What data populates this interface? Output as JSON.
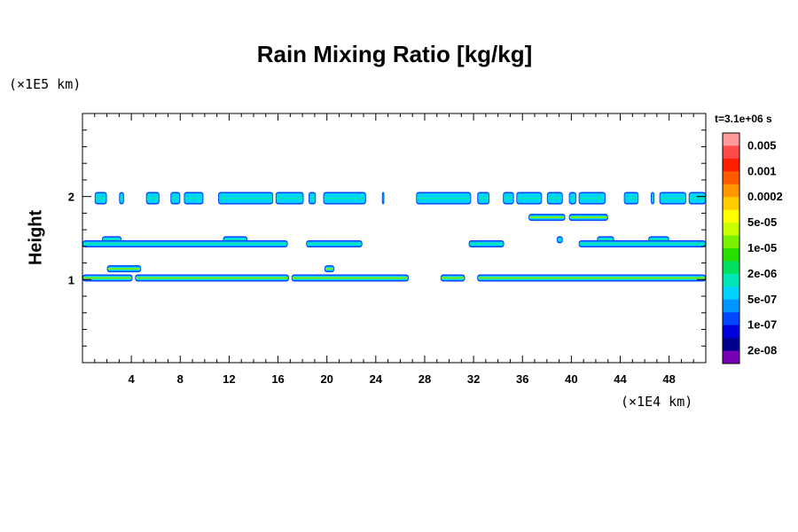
{
  "chart_data": {
    "type": "heatmap",
    "title": "Rain Mixing Ratio [kg/kg]",
    "ylabel": "Height",
    "y_unit": "(×1E5 km)",
    "x_unit": "(×1E4 km)",
    "time_label": "t=3.1e+06 s",
    "xlim": [
      0,
      51
    ],
    "ylim": [
      0,
      3
    ],
    "x_ticks": [
      4,
      8,
      12,
      16,
      20,
      24,
      28,
      32,
      36,
      40,
      44,
      48
    ],
    "y_ticks": [
      1,
      2
    ],
    "colorbar": {
      "labels": [
        "0.005",
        "0.001",
        "0.0002",
        "5e-05",
        "1e-05",
        "2e-06",
        "5e-07",
        "1e-07",
        "2e-08"
      ],
      "colors": [
        "#ff9a9a",
        "#ff4a4a",
        "#ff1e00",
        "#ff5a00",
        "#ff9600",
        "#ffcc00",
        "#ffff00",
        "#c8ff00",
        "#78f000",
        "#28e000",
        "#00e060",
        "#00e6b4",
        "#00d2ff",
        "#0096ff",
        "#0046ff",
        "#0000dc",
        "#00008c",
        "#7800b4"
      ]
    },
    "bands": [
      {
        "y": 1.98,
        "x": [
          [
            1.0,
            2.0
          ],
          [
            3.0,
            3.4
          ],
          [
            5.2,
            6.3
          ],
          [
            7.2,
            8.0
          ],
          [
            8.3,
            9.9
          ],
          [
            11.1,
            15.6
          ],
          [
            15.8,
            18.1
          ],
          [
            18.5,
            19.1
          ],
          [
            19.7,
            23.2
          ],
          [
            24.5,
            24.7
          ],
          [
            27.3,
            31.8
          ],
          [
            32.3,
            33.3
          ],
          [
            34.4,
            35.3
          ],
          [
            35.5,
            37.6
          ],
          [
            38.0,
            39.3
          ],
          [
            39.8,
            40.4
          ],
          [
            40.6,
            42.8
          ],
          [
            44.3,
            45.5
          ],
          [
            46.5,
            46.8
          ],
          [
            47.2,
            49.4
          ],
          [
            49.6,
            51.0
          ]
        ]
      },
      {
        "y": 1.75,
        "x": [
          [
            36.5,
            39.5
          ],
          [
            39.8,
            43.0
          ]
        ]
      },
      {
        "y": 1.48,
        "x": [
          [
            1.6,
            3.2
          ],
          [
            11.5,
            13.5
          ],
          [
            38.8,
            39.3
          ],
          [
            42.1,
            43.5
          ],
          [
            46.3,
            48.0
          ]
        ]
      },
      {
        "y": 1.43,
        "x": [
          [
            0.0,
            16.8
          ],
          [
            18.3,
            22.9
          ],
          [
            31.6,
            34.5
          ],
          [
            40.6,
            51.0
          ]
        ]
      },
      {
        "y": 1.13,
        "x": [
          [
            2.0,
            4.8
          ],
          [
            19.8,
            20.6
          ]
        ]
      },
      {
        "y": 1.02,
        "x": [
          [
            0.0,
            4.1
          ],
          [
            4.3,
            16.9
          ],
          [
            17.1,
            26.7
          ],
          [
            29.3,
            31.3
          ],
          [
            32.3,
            51.0
          ]
        ]
      }
    ]
  }
}
